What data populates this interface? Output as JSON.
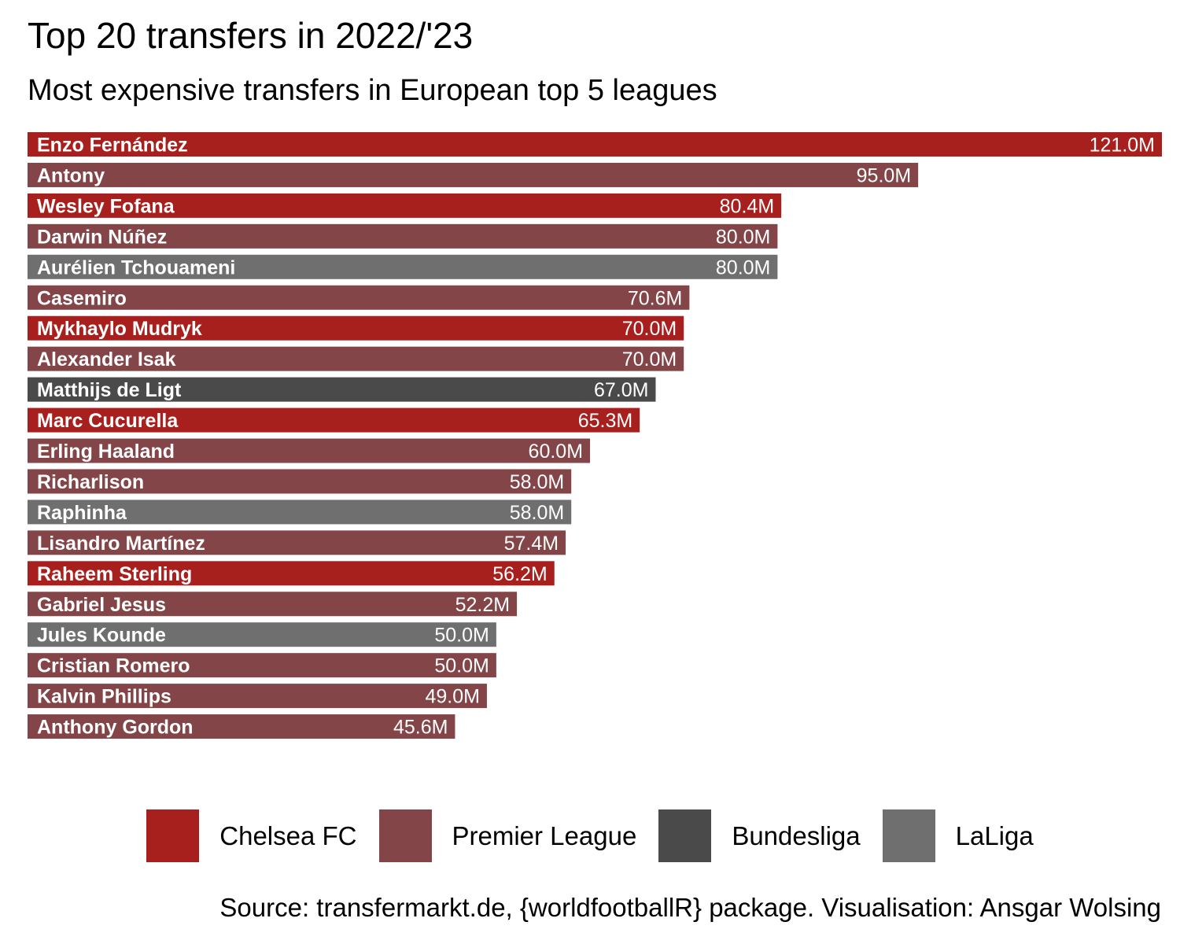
{
  "title": "Top 20 transfers in 2022/'23",
  "subtitle": "Most expensive transfers in European top 5 leagues",
  "caption": "Source: transfermarkt.de, {worldfootballR} package. Visualisation: Ansgar Wolsing",
  "colors": {
    "Chelsea FC": "#a8201e",
    "Premier League": "#834548",
    "Bundesliga": "#4a4a4a",
    "LaLiga": "#6f6f6f"
  },
  "legend": [
    "Chelsea FC",
    "Premier League",
    "Bundesliga",
    "LaLiga"
  ],
  "chart_data": {
    "type": "bar",
    "orientation": "horizontal",
    "unit": "M",
    "grid": false,
    "legend_position": "bottom",
    "title": "Top 20 transfers in 2022/'23",
    "subtitle": "Most expensive transfers in European top 5 leagues",
    "categories": [
      "Enzo Fernández",
      "Antony",
      "Wesley Fofana",
      "Darwin Núñez",
      "Aurélien Tchouameni",
      "Casemiro",
      "Mykhaylo Mudryk",
      "Alexander Isak",
      "Matthijs de Ligt",
      "Marc Cucurella",
      "Erling Haaland",
      "Richarlison",
      "Raphinha",
      "Lisandro Martínez",
      "Raheem Sterling",
      "Gabriel Jesus",
      "Jules Kounde",
      "Cristian Romero",
      "Kalvin Phillips",
      "Anthony Gordon"
    ],
    "values": [
      121.0,
      95.0,
      80.4,
      80.0,
      80.0,
      70.6,
      70.0,
      70.0,
      67.0,
      65.3,
      60.0,
      58.0,
      58.0,
      57.4,
      56.2,
      52.2,
      50.0,
      50.0,
      49.0,
      45.6
    ],
    "value_labels": [
      "121.0M",
      "95.0M",
      "80.4M",
      "80.0M",
      "80.0M",
      "70.6M",
      "70.0M",
      "70.0M",
      "67.0M",
      "65.3M",
      "60.0M",
      "58.0M",
      "58.0M",
      "57.4M",
      "56.2M",
      "52.2M",
      "50.0M",
      "50.0M",
      "49.0M",
      "45.6M"
    ],
    "groups": [
      "Chelsea FC",
      "Premier League",
      "Chelsea FC",
      "Premier League",
      "LaLiga",
      "Premier League",
      "Chelsea FC",
      "Premier League",
      "Bundesliga",
      "Chelsea FC",
      "Premier League",
      "Premier League",
      "LaLiga",
      "Premier League",
      "Chelsea FC",
      "Premier League",
      "LaLiga",
      "Premier League",
      "Premier League",
      "Premier League"
    ],
    "xlim": [
      0,
      121.0
    ]
  }
}
